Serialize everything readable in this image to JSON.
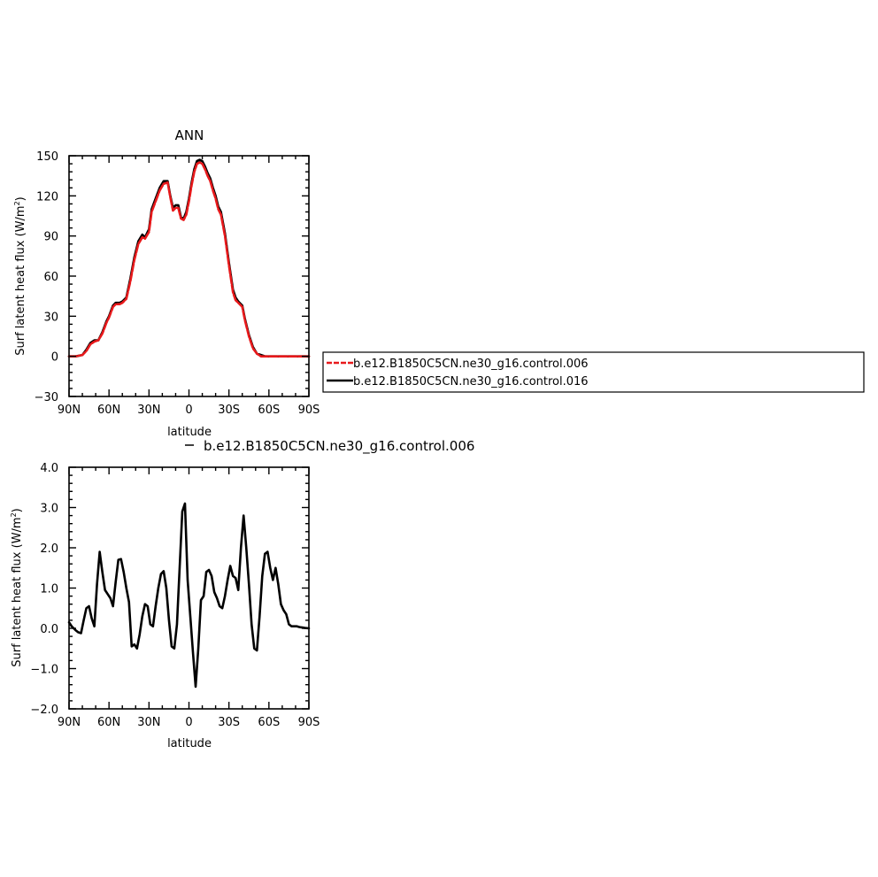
{
  "chart_data": [
    {
      "type": "line",
      "title": "ANN",
      "xlabel": "latitude",
      "ylabel": "Surf latent heat flux (W/m²)",
      "ylabel_main": "Surf latent heat flux (W/m",
      "ylabel_sup": "2",
      "ylabel_close": ")",
      "xlim": [
        -90,
        90
      ],
      "ylim": [
        -30,
        150
      ],
      "x_ticks": [
        -90,
        -60,
        -30,
        0,
        30,
        60,
        90
      ],
      "x_tick_labels": [
        "90N",
        "60N",
        "30N",
        "0",
        "30S",
        "60S",
        "90S"
      ],
      "y_ticks": [
        -30,
        0,
        30,
        60,
        90,
        120,
        150
      ],
      "y_tick_labels": [
        "−30",
        "0",
        "30",
        "60",
        "90",
        "120",
        "150"
      ],
      "legend": {
        "position": "right",
        "entries": [
          {
            "label": "b.e12.B1850C5CN.ne30_g16.control.006",
            "color": "#e8191b",
            "dash": true
          },
          {
            "label": "b.e12.B1850C5CN.ne30_g16.control.016",
            "color": "#000000",
            "dash": false
          }
        ]
      },
      "series": [
        {
          "name": "b.e12.B1850C5CN.ne30_g16.control.016",
          "color": "#000000",
          "x": [
            -90,
            -85,
            -80,
            -77,
            -74,
            -71,
            -68,
            -65,
            -62,
            -60,
            -57,
            -55,
            -52,
            -50,
            -47,
            -44,
            -41,
            -38,
            -35,
            -33,
            -30,
            -28,
            -25,
            -22,
            -19,
            -16,
            -14,
            -12,
            -10,
            -8,
            -6,
            -4,
            -2,
            0,
            2,
            4,
            6,
            8,
            10,
            12,
            14,
            16,
            18,
            20,
            22,
            24,
            27,
            30,
            33,
            35,
            37,
            40,
            42,
            45,
            48,
            51,
            54,
            57,
            60,
            62,
            65,
            68,
            70,
            73,
            76,
            80,
            85,
            90
          ],
          "y": [
            0,
            0,
            1,
            5,
            10,
            12,
            12,
            18,
            26,
            30,
            38,
            40,
            40,
            41,
            44,
            58,
            74,
            86,
            91,
            89,
            95,
            110,
            118,
            126,
            131,
            131,
            120,
            111,
            113,
            113,
            104,
            103,
            108,
            118,
            130,
            140,
            146,
            147,
            146,
            142,
            137,
            133,
            126,
            120,
            112,
            108,
            92,
            70,
            50,
            44,
            41,
            38,
            28,
            16,
            7,
            2,
            1,
            0,
            0,
            0,
            0,
            0,
            0,
            0,
            0,
            0,
            0,
            0
          ]
        },
        {
          "name": "b.e12.B1850C5CN.ne30_g16.control.006",
          "color": "#e8191b",
          "x": [
            -90,
            -85,
            -80,
            -77,
            -74,
            -71,
            -68,
            -65,
            -62,
            -60,
            -57,
            -55,
            -52,
            -50,
            -47,
            -44,
            -41,
            -38,
            -35,
            -33,
            -30,
            -28,
            -25,
            -22,
            -19,
            -16,
            -14,
            -12,
            -10,
            -8,
            -6,
            -4,
            -2,
            0,
            2,
            4,
            6,
            8,
            10,
            12,
            14,
            16,
            18,
            20,
            22,
            24,
            27,
            30,
            33,
            35,
            37,
            40,
            42,
            45,
            48,
            51,
            54,
            57,
            60,
            62,
            65,
            68,
            70,
            73,
            76,
            80,
            85,
            90
          ],
          "y": [
            0,
            0,
            1,
            4,
            9,
            11,
            12,
            17,
            25,
            29,
            37,
            39,
            39,
            40,
            43,
            56,
            72,
            84,
            89,
            88,
            93,
            108,
            116,
            124,
            129,
            130,
            119,
            109,
            111,
            111,
            103,
            102,
            106,
            116,
            128,
            138,
            144,
            145,
            144,
            140,
            135,
            131,
            124,
            118,
            110,
            106,
            90,
            68,
            48,
            42,
            40,
            37,
            27,
            15,
            6,
            2,
            0,
            0,
            0,
            0,
            0,
            0,
            0,
            0,
            0,
            0,
            0,
            0
          ]
        }
      ]
    },
    {
      "type": "line",
      "title": "",
      "xlabel": "latitude",
      "ylabel": "Surf latent heat flux (W/m²)",
      "ylabel_main": "Surf latent heat flux (W/m",
      "ylabel_sup": "2",
      "ylabel_close": ")",
      "xlim": [
        -90,
        90
      ],
      "ylim": [
        -2,
        4
      ],
      "x_ticks": [
        -90,
        -60,
        -30,
        0,
        30,
        60,
        90
      ],
      "x_tick_labels": [
        "90N",
        "60N",
        "30N",
        "0",
        "30S",
        "60S",
        "90S"
      ],
      "y_ticks": [
        -2,
        -1,
        0,
        1,
        2,
        3,
        4
      ],
      "y_tick_labels": [
        "−2.0",
        "−1.0",
        "0.0",
        "1.0",
        "2.0",
        "3.0",
        "4.0"
      ],
      "legend": {
        "position": "top",
        "entries": [
          {
            "label": "b.e12.B1850C5CN.ne30_g16.control.006",
            "color": "#000000",
            "dash": false
          }
        ]
      },
      "series": [
        {
          "name": "b.e12.B1850C5CN.ne30_g16.control.006",
          "color": "#000000",
          "x": [
            -90,
            -88,
            -85,
            -83,
            -81,
            -79,
            -77,
            -75,
            -73,
            -71,
            -69,
            -67,
            -65,
            -63,
            -61,
            -59,
            -57,
            -55,
            -53,
            -51,
            -49,
            -47,
            -45,
            -43,
            -41,
            -39,
            -37,
            -35,
            -33,
            -31,
            -29,
            -27,
            -25,
            -23,
            -21,
            -19,
            -17,
            -15,
            -13,
            -11,
            -9,
            -7,
            -5,
            -3,
            -1,
            1,
            3,
            5,
            7,
            9,
            11,
            13,
            15,
            17,
            19,
            21,
            23,
            25,
            27,
            29,
            31,
            33,
            35,
            37,
            39,
            41,
            43,
            45,
            47,
            49,
            51,
            53,
            55,
            57,
            59,
            61,
            63,
            65,
            67,
            69,
            71,
            73,
            75,
            77,
            79,
            81,
            83,
            85,
            87,
            90
          ],
          "y": [
            0.15,
            0.05,
            -0.05,
            -0.1,
            -0.12,
            0.2,
            0.5,
            0.55,
            0.25,
            0.05,
            1.1,
            1.9,
            1.4,
            0.95,
            0.85,
            0.75,
            0.55,
            1.15,
            1.7,
            1.72,
            1.4,
            1.0,
            0.65,
            -0.45,
            -0.4,
            -0.5,
            -0.15,
            0.3,
            0.6,
            0.55,
            0.1,
            0.05,
            0.55,
            1.0,
            1.35,
            1.42,
            1.0,
            0.2,
            -0.45,
            -0.5,
            0.1,
            1.5,
            2.9,
            3.1,
            1.2,
            0.3,
            -0.6,
            -1.45,
            -0.5,
            0.7,
            0.8,
            1.4,
            1.45,
            1.3,
            0.9,
            0.75,
            0.55,
            0.5,
            0.8,
            1.2,
            1.55,
            1.3,
            1.25,
            0.95,
            2.0,
            2.8,
            2.0,
            1.1,
            0.1,
            -0.5,
            -0.55,
            0.3,
            1.3,
            1.85,
            1.9,
            1.5,
            1.2,
            1.5,
            1.1,
            0.6,
            0.45,
            0.35,
            0.1,
            0.05,
            0.05,
            0.05,
            0.03,
            0.02,
            0.01,
            0.0
          ]
        }
      ]
    }
  ]
}
